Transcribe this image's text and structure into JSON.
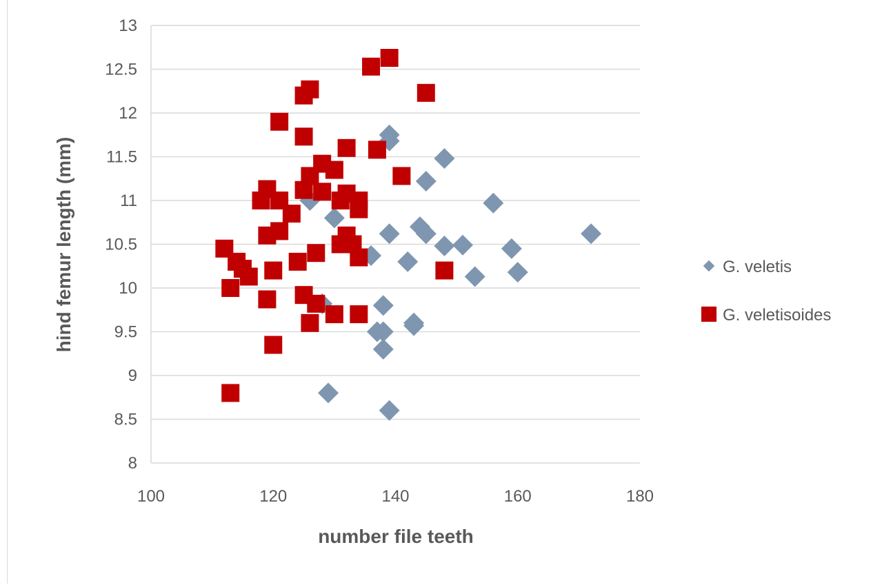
{
  "chart_data": {
    "type": "scatter",
    "title": "",
    "xlabel": "number file teeth",
    "ylabel": "hind femur length (mm)",
    "xlim": [
      100,
      180
    ],
    "ylim": [
      8,
      13
    ],
    "x_ticks": [
      "100",
      "120",
      "140",
      "160",
      "180"
    ],
    "y_ticks": [
      "8",
      "8.5",
      "9",
      "9.5",
      "10",
      "10.5",
      "11",
      "11.5",
      "12",
      "12.5",
      "13"
    ],
    "grid": "horizontal",
    "legend_position": "right",
    "series": [
      {
        "name": "G. veletis",
        "marker": "diamond",
        "color": "#7f96b0",
        "points": [
          [
            139,
            11.75
          ],
          [
            139,
            11.68
          ],
          [
            148,
            11.48
          ],
          [
            145,
            11.22
          ],
          [
            156,
            10.97
          ],
          [
            126,
            11.0
          ],
          [
            130,
            10.8
          ],
          [
            144,
            10.7
          ],
          [
            145,
            10.62
          ],
          [
            139,
            10.62
          ],
          [
            172,
            10.62
          ],
          [
            148,
            10.48
          ],
          [
            151,
            10.49
          ],
          [
            159,
            10.45
          ],
          [
            136,
            10.37
          ],
          [
            142,
            10.3
          ],
          [
            160,
            10.18
          ],
          [
            153,
            10.13
          ],
          [
            128,
            9.82
          ],
          [
            138,
            9.8
          ],
          [
            143,
            9.6
          ],
          [
            143,
            9.57
          ],
          [
            137,
            9.5
          ],
          [
            138,
            9.5
          ],
          [
            138,
            9.3
          ],
          [
            129,
            8.8
          ],
          [
            139,
            8.6
          ]
        ]
      },
      {
        "name": "G. veletisoides",
        "marker": "square",
        "color": "#c00000",
        "points": [
          [
            139,
            12.63
          ],
          [
            136,
            12.53
          ],
          [
            145,
            12.23
          ],
          [
            126,
            12.27
          ],
          [
            125,
            12.2
          ],
          [
            121,
            11.9
          ],
          [
            125,
            11.73
          ],
          [
            132,
            11.6
          ],
          [
            137,
            11.58
          ],
          [
            128,
            11.42
          ],
          [
            130,
            11.35
          ],
          [
            141,
            11.28
          ],
          [
            126,
            11.28
          ],
          [
            119,
            11.13
          ],
          [
            125,
            11.12
          ],
          [
            128,
            11.1
          ],
          [
            132,
            11.08
          ],
          [
            118,
            11.0
          ],
          [
            121,
            11.0
          ],
          [
            131,
            11.0
          ],
          [
            134,
            11.0
          ],
          [
            134,
            10.9
          ],
          [
            123,
            10.85
          ],
          [
            121,
            10.65
          ],
          [
            119,
            10.6
          ],
          [
            132,
            10.6
          ],
          [
            133,
            10.5
          ],
          [
            131,
            10.5
          ],
          [
            112,
            10.45
          ],
          [
            127,
            10.4
          ],
          [
            134,
            10.35
          ],
          [
            114,
            10.3
          ],
          [
            124,
            10.3
          ],
          [
            115,
            10.22
          ],
          [
            120,
            10.2
          ],
          [
            148,
            10.2
          ],
          [
            116,
            10.13
          ],
          [
            113,
            10.0
          ],
          [
            125,
            9.92
          ],
          [
            119,
            9.87
          ],
          [
            127,
            9.82
          ],
          [
            130,
            9.7
          ],
          [
            134,
            9.7
          ],
          [
            126,
            9.6
          ],
          [
            120,
            9.35
          ],
          [
            113,
            8.8
          ]
        ]
      }
    ]
  },
  "legend": {
    "items": [
      {
        "label": "G. veletis",
        "marker": "diamond",
        "color": "#7f96b0"
      },
      {
        "label": "G. veletisoides",
        "marker": "square",
        "color": "#c00000"
      }
    ]
  },
  "colors": {
    "gridline": "#d9d9d9",
    "text": "#595959"
  }
}
